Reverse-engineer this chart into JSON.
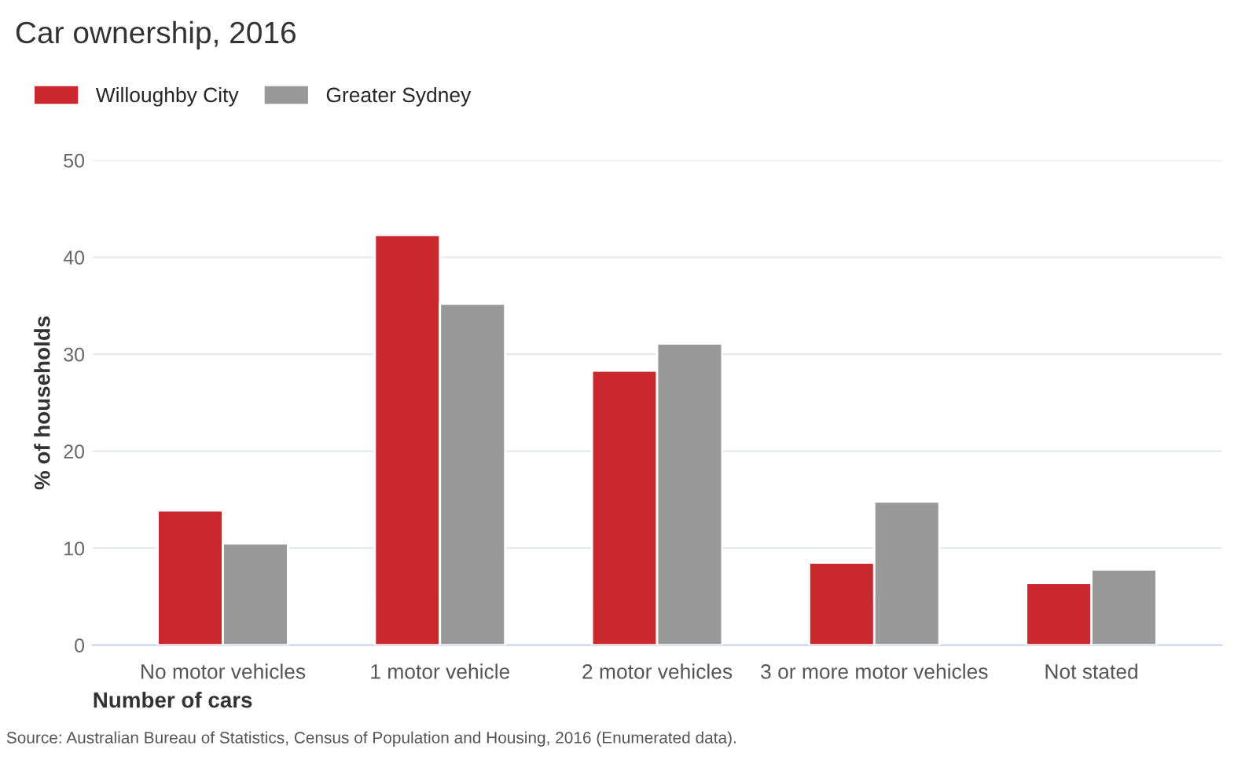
{
  "chart_data": {
    "type": "bar",
    "title": "Car ownership, 2016",
    "xlabel": "Number of cars",
    "ylabel": "% of households",
    "categories": [
      "No motor vehicles",
      "1 motor vehicle",
      "2 motor vehicles",
      "3 or more motor vehicles",
      "Not stated"
    ],
    "series": [
      {
        "name": "Willoughby City",
        "color": "#c9282f",
        "values": [
          13.9,
          42.3,
          28.3,
          8.5,
          6.4
        ]
      },
      {
        "name": "Greater Sydney",
        "color": "#999999",
        "values": [
          10.5,
          35.2,
          31.1,
          14.8,
          7.8
        ]
      }
    ],
    "ylim": [
      0,
      50
    ],
    "yticks": [
      0,
      10,
      20,
      30,
      40,
      50
    ],
    "grid": "y",
    "legend": "top left",
    "annotations": [
      "Source: Australian Bureau of Statistics, Census of Population and Housing, 2016 (Enumerated data)."
    ]
  }
}
